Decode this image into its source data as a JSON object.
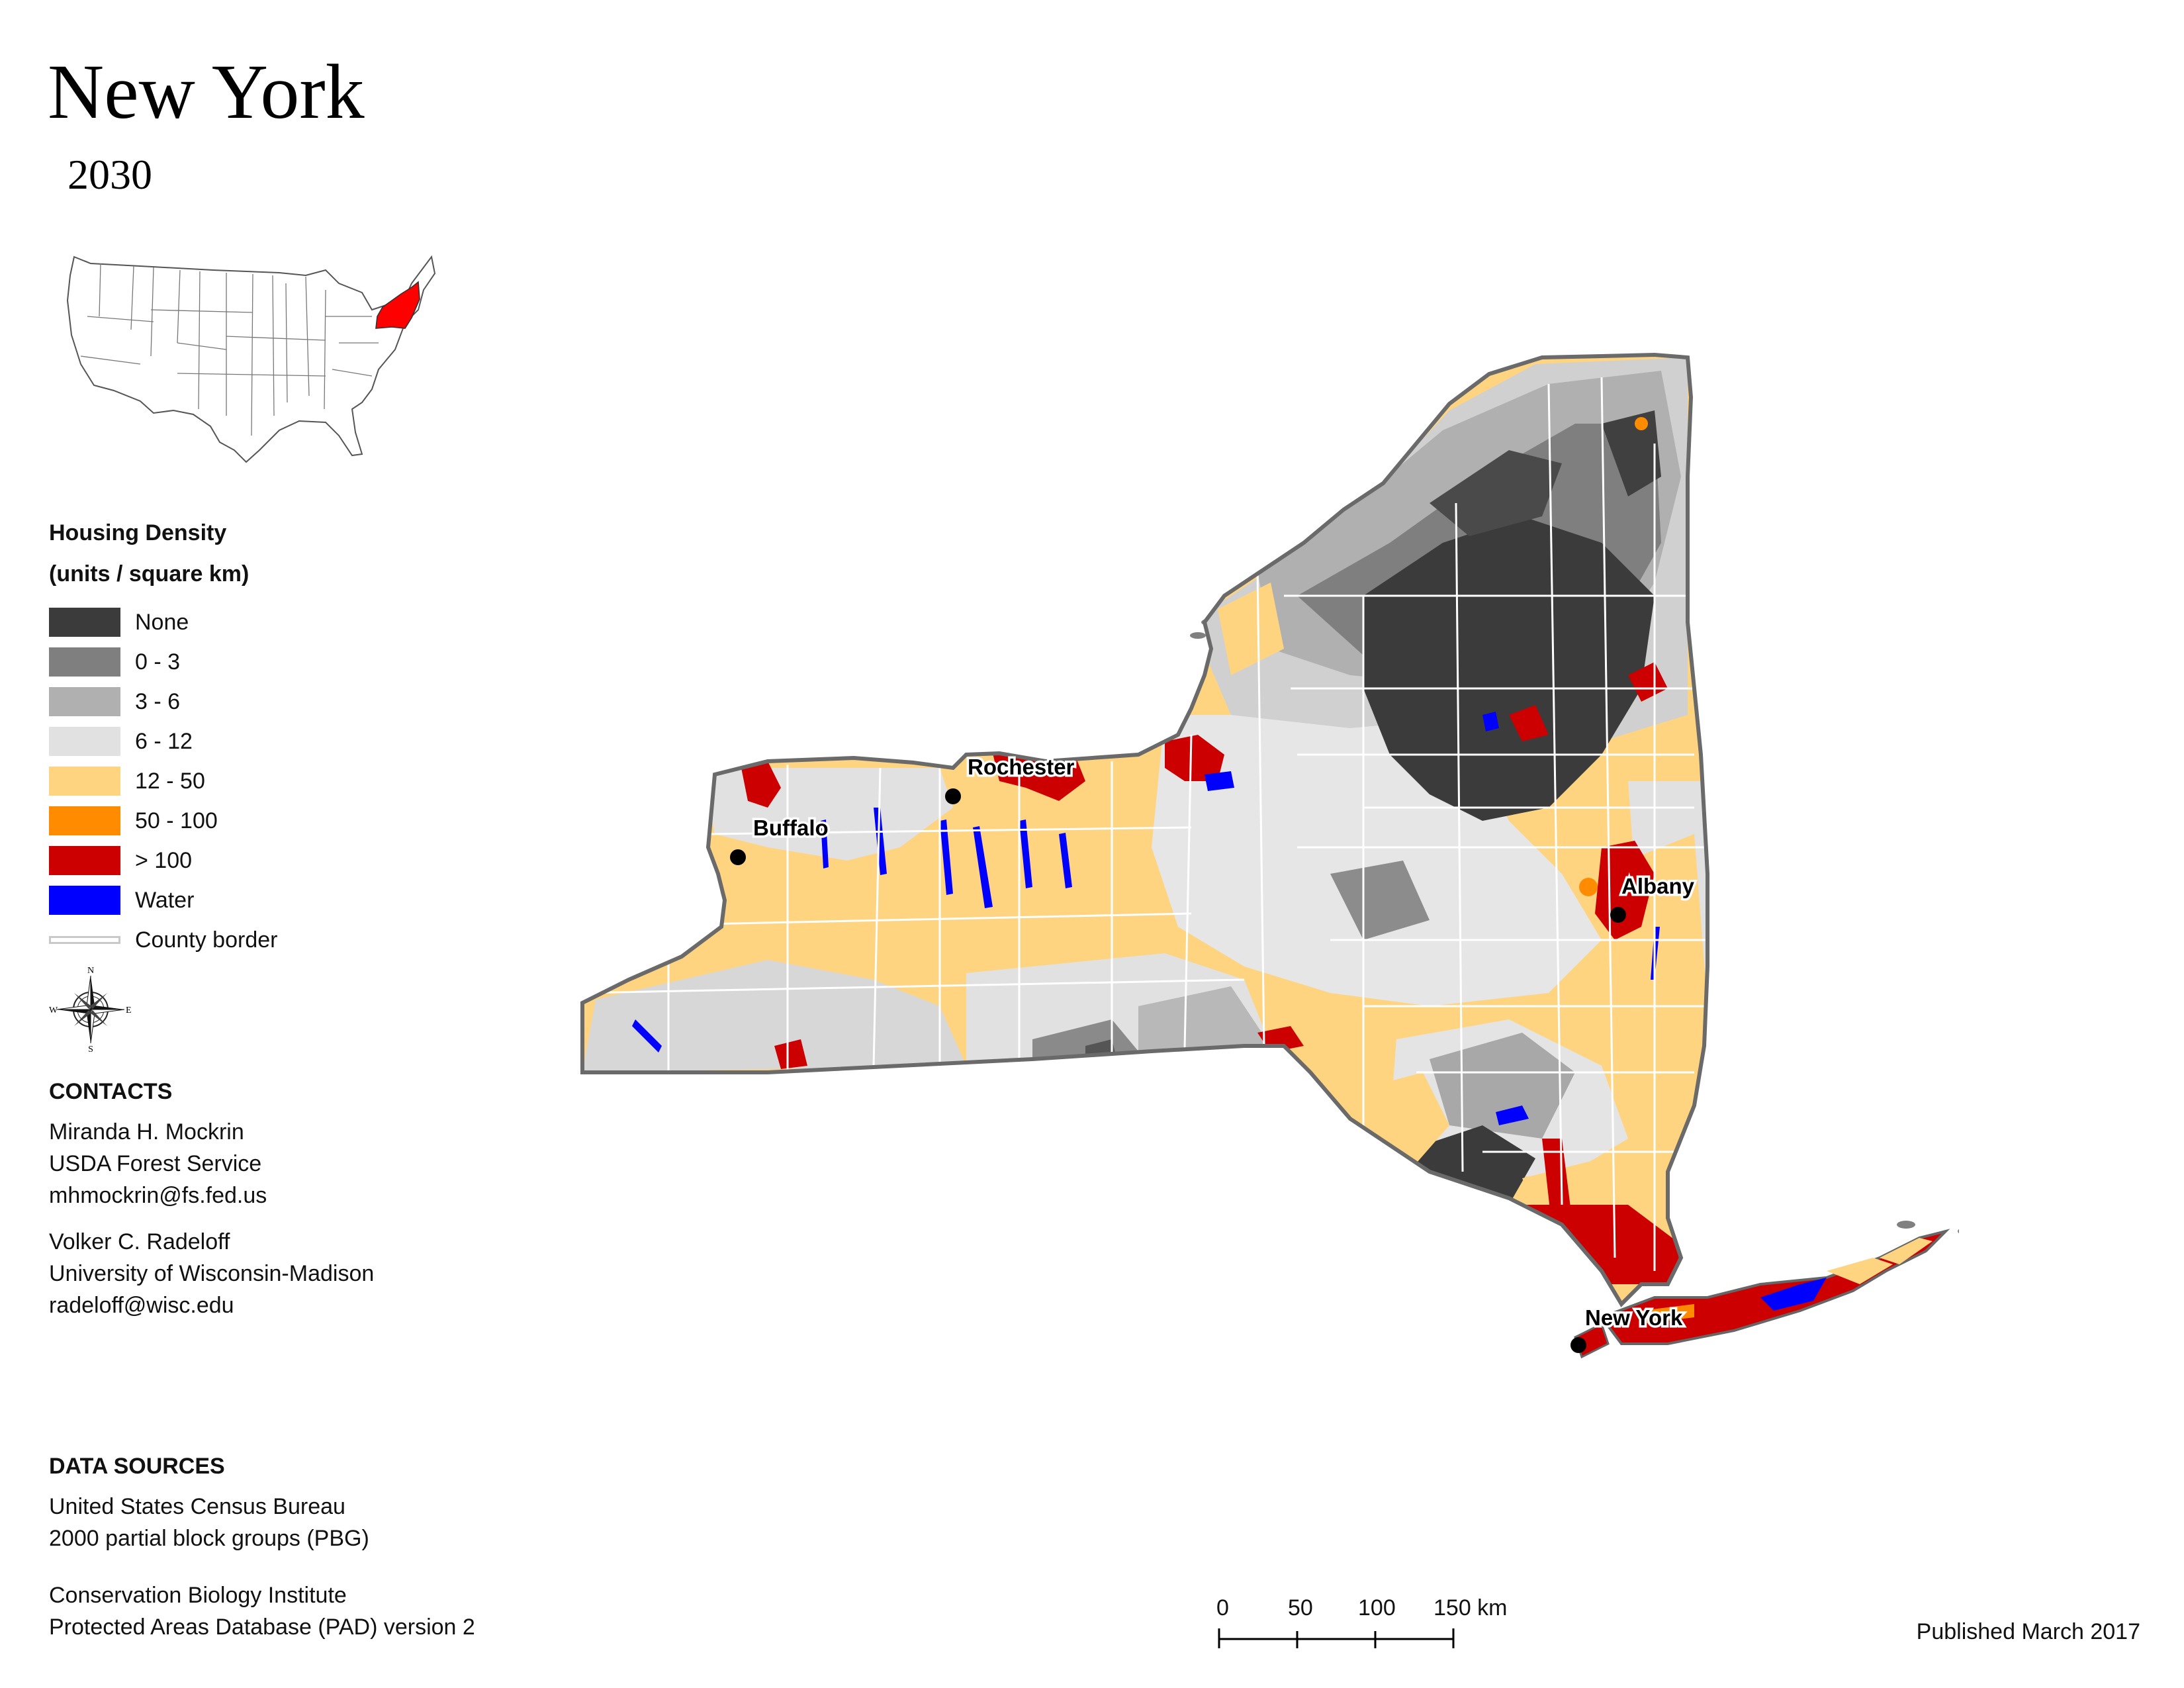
{
  "title": "New York",
  "subtitle": "2030",
  "legend": {
    "title_line1": "Housing Density",
    "title_line2": "(units / square km)",
    "items": [
      {
        "label": "None",
        "color": "#3b3b3b"
      },
      {
        "label": "0 - 3",
        "color": "#7f7f7f"
      },
      {
        "label": "3 - 6",
        "color": "#b0b0b0"
      },
      {
        "label": "6 - 12",
        "color": "#e1e1e1"
      },
      {
        "label": "12 - 50",
        "color": "#ffd480"
      },
      {
        "label": "50 - 100",
        "color": "#ff8c00"
      },
      {
        "label": "> 100",
        "color": "#cc0000"
      },
      {
        "label": "Water",
        "color": "#0000ff"
      }
    ],
    "county_border_label": "County border"
  },
  "compass": {
    "n": "N",
    "s": "S",
    "e": "E",
    "w": "W"
  },
  "contacts": {
    "heading": "CONTACTS",
    "person1": [
      "Miranda H. Mockrin",
      "USDA Forest Service",
      "mhmockrin@fs.fed.us"
    ],
    "person2": [
      "Volker C. Radeloff",
      "University of Wisconsin-Madison",
      "radeloff@wisc.edu"
    ]
  },
  "data_sources": {
    "heading": "DATA SOURCES",
    "source1": [
      "United States Census Bureau",
      "2000 partial block groups (PBG)"
    ],
    "source2": [
      "Conservation Biology Institute",
      "Protected Areas Database (PAD) version 2"
    ]
  },
  "cities": [
    "Rochester",
    "Buffalo",
    "Albany",
    "New York"
  ],
  "scale_bar": {
    "labels": [
      "0",
      "50",
      "100",
      "150 km"
    ]
  },
  "published": "Published March 2017",
  "inset_highlight_color": "#ff0000"
}
